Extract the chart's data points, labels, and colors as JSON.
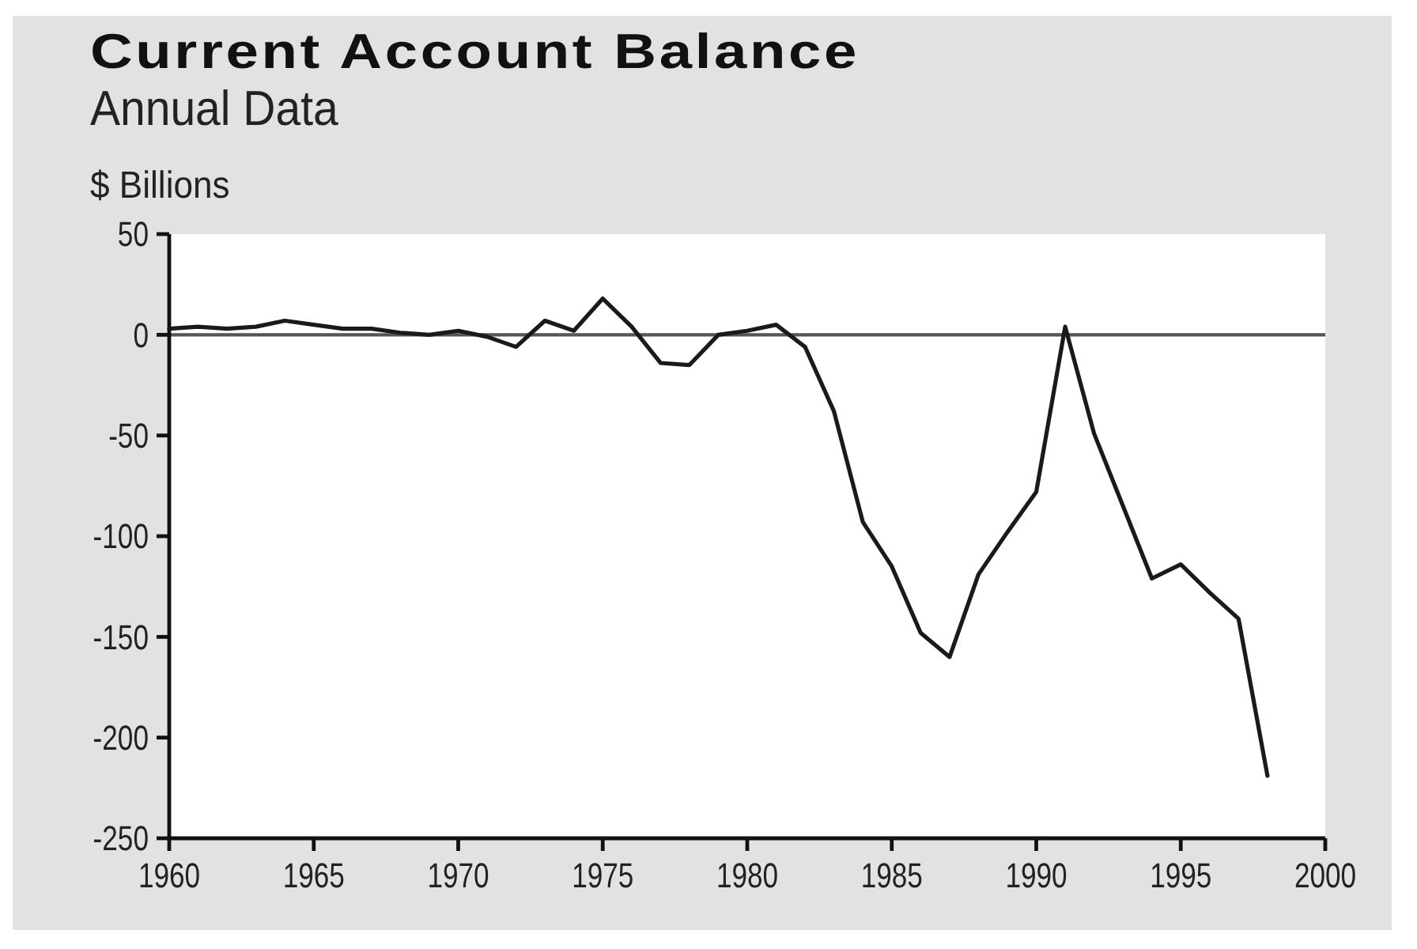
{
  "chart_data": {
    "type": "line",
    "title": "Current Account Balance",
    "subtitle": "Annual Data",
    "ylabel": "$ Billions",
    "x": [
      1960,
      1961,
      1962,
      1963,
      1964,
      1965,
      1966,
      1967,
      1968,
      1969,
      1970,
      1971,
      1972,
      1973,
      1974,
      1975,
      1976,
      1977,
      1978,
      1979,
      1980,
      1981,
      1982,
      1983,
      1984,
      1985,
      1986,
      1987,
      1988,
      1989,
      1990,
      1991,
      1992,
      1993,
      1994,
      1995,
      1996,
      1997,
      1998
    ],
    "series": [
      {
        "color": "#1a1a1a",
        "values": [
          3,
          4,
          3,
          4,
          7,
          5,
          3,
          3,
          1,
          0,
          2,
          -1,
          -6,
          7,
          2,
          18,
          4,
          -14,
          -15,
          0,
          2,
          5,
          -6,
          -38,
          -93,
          -115,
          -148,
          -160,
          -119,
          -98,
          -78,
          4,
          -49,
          -85,
          -121,
          -114,
          -128,
          -141,
          -219
        ]
      }
    ],
    "xlim": [
      1960,
      2000
    ],
    "xticks": [
      1960,
      1965,
      1970,
      1975,
      1980,
      1985,
      1990,
      1995,
      2000
    ],
    "ylim": [
      -250,
      50
    ],
    "yticks": [
      50,
      0,
      -50,
      -100,
      -150,
      -200,
      -250
    ],
    "ref_lines": [
      {
        "axis": "y",
        "value": 0,
        "color": "#555555"
      }
    ],
    "line_style": "solid"
  }
}
